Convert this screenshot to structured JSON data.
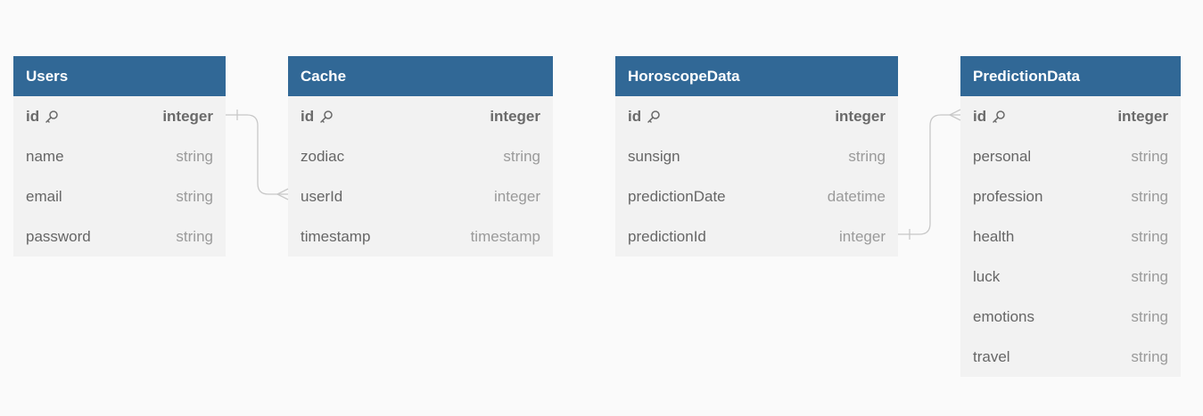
{
  "tables": [
    {
      "id": "users",
      "name": "Users",
      "fields": [
        {
          "name": "id",
          "type": "integer",
          "pk": true
        },
        {
          "name": "name",
          "type": "string"
        },
        {
          "name": "email",
          "type": "string"
        },
        {
          "name": "password",
          "type": "string"
        }
      ]
    },
    {
      "id": "cache",
      "name": "Cache",
      "fields": [
        {
          "name": "id",
          "type": "integer",
          "pk": true
        },
        {
          "name": "zodiac",
          "type": "string"
        },
        {
          "name": "userId",
          "type": "integer"
        },
        {
          "name": "timestamp",
          "type": "timestamp"
        }
      ]
    },
    {
      "id": "horoscopedata",
      "name": "HoroscopeData",
      "fields": [
        {
          "name": "id",
          "type": "integer",
          "pk": true
        },
        {
          "name": "sunsign",
          "type": "string"
        },
        {
          "name": "predictionDate",
          "type": "datetime"
        },
        {
          "name": "predictionId",
          "type": "integer"
        }
      ]
    },
    {
      "id": "predictiondata",
      "name": "PredictionData",
      "fields": [
        {
          "name": "id",
          "type": "integer",
          "pk": true
        },
        {
          "name": "personal",
          "type": "string"
        },
        {
          "name": "profession",
          "type": "string"
        },
        {
          "name": "health",
          "type": "string"
        },
        {
          "name": "luck",
          "type": "string"
        },
        {
          "name": "emotions",
          "type": "string"
        },
        {
          "name": "travel",
          "type": "string"
        }
      ]
    }
  ],
  "relationships": [
    {
      "from": "users.id",
      "to": "cache.userId",
      "from_card": "one",
      "to_card": "many"
    },
    {
      "from": "horoscopedata.predictionId",
      "to": "predictiondata.id",
      "from_card": "one",
      "to_card": "many"
    }
  ],
  "icons": {
    "primary_key": "key-icon"
  },
  "colors": {
    "header": "#316896",
    "header_text": "#ffffff",
    "body": "#f2f2f2",
    "background": "#fafafa",
    "connector": "#c8c8c8"
  }
}
